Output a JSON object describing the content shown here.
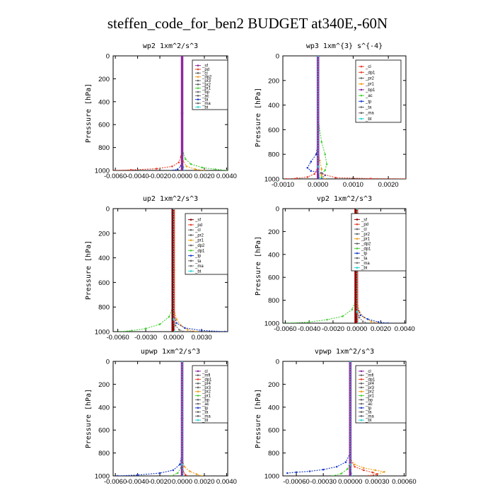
{
  "figure_title": "steffen_code_for_ben2  BUDGET at340E,-60N",
  "chart_data": [
    {
      "type": "line",
      "title": "wp2  1xm^2/s^3",
      "ylabel": "Pressure [hPa]",
      "xlim": [
        -0.0062,
        0.0041
      ],
      "ylim": [
        1000,
        0
      ],
      "xticks": [
        "-0.0060",
        "-0.0040",
        "-0.0020",
        "0.0000",
        "0.0020",
        "0.0040"
      ],
      "xtick_values": [
        -0.006,
        -0.004,
        -0.002,
        0.0,
        0.002,
        0.004
      ],
      "yticks": [
        "0",
        "200",
        "400",
        "600",
        "800",
        "1000"
      ],
      "ytick_values": [
        0,
        200,
        400,
        600,
        800,
        1000
      ],
      "legend": [
        "_sf",
        "_pd",
        "_cl",
        "_dp2",
        "_pr3",
        "_pr2",
        "_pr1",
        "_bp",
        "_ac",
        "_ta",
        "_ma",
        "_bt"
      ],
      "series": [
        {
          "name": "_pd",
          "color": "#e8412c",
          "x": [
            0,
            0,
            0,
            0,
            -0.0001,
            -0.0003,
            -0.0009,
            -0.0023,
            -0.0046,
            -0.006
          ],
          "y": [
            0,
            400,
            700,
            820,
            880,
            930,
            965,
            985,
            995,
            1000
          ]
        },
        {
          "name": "_pr1",
          "color": "#49d03a",
          "x": [
            0,
            0,
            0,
            0.0001,
            0.0003,
            0.0008,
            0.0018,
            0.003,
            0.004
          ],
          "y": [
            0,
            700,
            800,
            850,
            900,
            945,
            975,
            990,
            1000
          ]
        },
        {
          "name": "_dp2",
          "color": "#f0a020",
          "x": [
            0,
            0,
            0.0001,
            0.0004,
            0.0012,
            0.002
          ],
          "y": [
            0,
            850,
            920,
            965,
            990,
            1000
          ]
        },
        {
          "name": "_ta",
          "color": "#1a3cc8",
          "x": [
            0,
            0,
            -0.0001,
            -0.0004,
            -0.0008
          ],
          "y": [
            0,
            900,
            960,
            990,
            1000
          ]
        },
        {
          "name": "_bt",
          "color": "#27d6d6",
          "x": [
            0,
            0,
            0.0001,
            0.0002
          ],
          "y": [
            0,
            900,
            970,
            1000
          ]
        },
        {
          "name": "_sf",
          "color": "#8c2a9c",
          "x": [
            0,
            0,
            0
          ],
          "y": [
            0,
            500,
            1000
          ]
        }
      ]
    },
    {
      "type": "line",
      "title": "wp3  1xm^{3} s^{-4}",
      "ylabel": "Pressure [hPa]",
      "xlim": [
        -0.001,
        0.0025
      ],
      "ylim": [
        1000,
        0
      ],
      "xticks": [
        "-0.0010",
        "0.0000",
        "0.0010",
        "0.0020"
      ],
      "xtick_values": [
        -0.001,
        0.0,
        0.001,
        0.002
      ],
      "yticks": [
        "0",
        "200",
        "400",
        "600",
        "800",
        "1000"
      ],
      "ytick_values": [
        0,
        200,
        400,
        600,
        800,
        1000
      ],
      "legend": [
        "_cl",
        "_dp1",
        "_pr2",
        "_pr1",
        "_bp1",
        "_ac",
        "_tp",
        "_ta",
        "_ma",
        "_bt"
      ],
      "series": [
        {
          "name": "_ac",
          "color": "#49d03a",
          "x": [
            0,
            0,
            0.0001,
            0.0002,
            0.00025,
            0.0002,
            0.0001,
            0.0001,
            0.0001
          ],
          "y": [
            0,
            500,
            700,
            800,
            880,
            930,
            960,
            985,
            1000
          ]
        },
        {
          "name": "_tp",
          "color": "#1a3cc8",
          "x": [
            0,
            0,
            -5e-05,
            -0.0002,
            -0.0003,
            -0.0002,
            0.0001,
            0.0002,
            0.0001
          ],
          "y": [
            0,
            700,
            800,
            860,
            910,
            935,
            950,
            970,
            1000
          ]
        },
        {
          "name": "_pr1",
          "color": "#f0a020",
          "x": [
            0,
            0,
            5e-05,
            0.0001,
            0.0001,
            0.0002
          ],
          "y": [
            0,
            750,
            850,
            920,
            970,
            1000
          ]
        },
        {
          "name": "_dp1",
          "color": "#e8412c",
          "x": [
            0,
            0,
            -0.0001,
            -0.0003,
            -0.0006,
            -0.0009
          ],
          "y": [
            0,
            900,
            960,
            985,
            995,
            1000
          ]
        },
        {
          "name": "_cl",
          "color": "#e8412c",
          "x": [
            0,
            0,
            0.0005,
            0.0015,
            0.0025
          ],
          "y": [
            0,
            950,
            990,
            997,
            1000
          ]
        },
        {
          "name": "_bp1",
          "color": "#8c2a9c",
          "x": [
            0,
            0,
            0
          ],
          "y": [
            0,
            500,
            1000
          ]
        },
        {
          "name": "_bt",
          "color": "#27d6d6",
          "x": [
            0,
            0,
            5e-05
          ],
          "y": [
            0,
            900,
            1000
          ]
        }
      ]
    },
    {
      "type": "line",
      "title": "up2  1xm^2/s^3",
      "ylabel": "Pressure [hPa]",
      "xlim": [
        -0.0065,
        0.0058
      ],
      "ylim": [
        1000,
        0
      ],
      "xticks": [
        "-0.0060",
        "-0.0030",
        "0.0000",
        "0.0030"
      ],
      "xtick_values": [
        -0.006,
        -0.003,
        0.0,
        0.003
      ],
      "yticks": [
        "0",
        "200",
        "400",
        "600",
        "800",
        "1000"
      ],
      "ytick_values": [
        0,
        200,
        400,
        600,
        800,
        1000
      ],
      "legend": [
        "_sf",
        "_pd",
        "_cl",
        "_pr2",
        "_pr1",
        "_dp2",
        "_dp1",
        "_tp",
        "_ta",
        "_ma",
        "_bt"
      ],
      "series": [
        {
          "name": "_dp1",
          "color": "#49d03a",
          "x": [
            0,
            0,
            -0.0001,
            -0.0005,
            -0.0015,
            -0.003,
            -0.0045,
            -0.0058
          ],
          "y": [
            0,
            700,
            800,
            880,
            940,
            975,
            992,
            1000
          ]
        },
        {
          "name": "_pr1",
          "color": "#f0a020",
          "x": [
            0,
            0,
            0.0003,
            0.0008,
            0.0015,
            0.0025
          ],
          "y": [
            0,
            800,
            900,
            950,
            985,
            1000
          ]
        },
        {
          "name": "_tp",
          "color": "#1a3cc8",
          "x": [
            0,
            0,
            0.0003,
            0.0012,
            0.003,
            0.0055
          ],
          "y": [
            0,
            850,
            930,
            970,
            990,
            1000
          ]
        },
        {
          "name": "_ma",
          "color": "#777777",
          "x": [
            0,
            0,
            0.0002,
            0.0006,
            0.0012
          ],
          "y": [
            0,
            880,
            950,
            985,
            1000
          ]
        },
        {
          "name": "_pd",
          "color": "#e8412c",
          "x": [
            0,
            0,
            0
          ],
          "y": [
            0,
            500,
            1000
          ]
        },
        {
          "name": "_sf",
          "color": "#8b0000",
          "x": [
            -0.0001,
            -0.0001,
            -0.0001
          ],
          "y": [
            0,
            500,
            1000
          ]
        },
        {
          "name": "_bt",
          "color": "#27d6d6",
          "x": [
            0,
            0,
            0.0001
          ],
          "y": [
            0,
            900,
            1000
          ]
        }
      ]
    },
    {
      "type": "line",
      "title": "vp2  1xm^2/s^3",
      "ylabel": "Pressure [hPa]",
      "xlim": [
        -0.0062,
        0.0041
      ],
      "ylim": [
        1000,
        0
      ],
      "xticks": [
        "-0.0060",
        "-0.0040",
        "-0.0020",
        "0.0000",
        "0.0020",
        "0.0040"
      ],
      "xtick_values": [
        -0.006,
        -0.004,
        -0.002,
        0.0,
        0.002,
        0.004
      ],
      "yticks": [
        "0",
        "200",
        "400",
        "600",
        "800",
        "1000"
      ],
      "ytick_values": [
        0,
        200,
        400,
        600,
        800,
        1000
      ],
      "legend": [
        "_sf",
        "_pd",
        "_cl",
        "_pr2",
        "_pr1",
        "_dp2",
        "_dp1",
        "_tp",
        "_ta",
        "_ma",
        "_bt"
      ],
      "series": [
        {
          "name": "_dp1",
          "color": "#49d03a",
          "x": [
            0,
            0,
            -0.0001,
            -0.0004,
            -0.0012,
            -0.0025,
            -0.004,
            -0.0058
          ],
          "y": [
            0,
            700,
            800,
            880,
            940,
            970,
            990,
            1000
          ]
        },
        {
          "name": "_pr1",
          "color": "#f0a020",
          "x": [
            0,
            0,
            0.0002,
            0.0006,
            0.0012,
            0.0018
          ],
          "y": [
            0,
            800,
            900,
            950,
            985,
            1000
          ]
        },
        {
          "name": "_tp",
          "color": "#1a3cc8",
          "x": [
            0,
            0,
            0.0003,
            0.0009,
            0.0018,
            0.0026
          ],
          "y": [
            0,
            850,
            930,
            965,
            990,
            1000
          ]
        },
        {
          "name": "_ma",
          "color": "#777777",
          "x": [
            0,
            0,
            0.0002,
            0.0005,
            0.001
          ],
          "y": [
            0,
            880,
            950,
            985,
            1000
          ]
        },
        {
          "name": "_pd",
          "color": "#e8412c",
          "x": [
            0,
            0,
            0
          ],
          "y": [
            0,
            500,
            1000
          ]
        },
        {
          "name": "_sf",
          "color": "#8b0000",
          "x": [
            -0.0001,
            -0.0001,
            -0.0001
          ],
          "y": [
            0,
            500,
            1000
          ]
        },
        {
          "name": "_bt",
          "color": "#27d6d6",
          "x": [
            0,
            0,
            0.0001
          ],
          "y": [
            0,
            900,
            1000
          ]
        }
      ]
    },
    {
      "type": "line",
      "title": "upwp  1xm^2/s^3",
      "ylabel": "Pressure [hPa]",
      "xlim": [
        -0.0062,
        0.0041
      ],
      "ylim": [
        1000,
        0
      ],
      "xticks": [
        "-0.0060",
        "-0.0040",
        "-0.0020",
        "0.0000",
        "0.0020",
        "0.0040"
      ],
      "xtick_values": [
        -0.006,
        -0.004,
        -0.002,
        0.0,
        0.002,
        0.004
      ],
      "yticks": [
        "0",
        "200",
        "400",
        "600",
        "800",
        "1000"
      ],
      "ytick_values": [
        0,
        200,
        400,
        600,
        800,
        1000
      ],
      "legend": [
        "_cl",
        "_mfl",
        "_dp1",
        "_pr4",
        "_pr3",
        "_pr2",
        "_pr1",
        "_bp",
        "_ac",
        "_tp",
        "_ta",
        "_ma",
        "_bt"
      ],
      "series": [
        {
          "name": "_tp",
          "color": "#1a3cc8",
          "x": [
            0,
            0,
            -0.0002,
            -0.0008,
            -0.002,
            -0.004,
            -0.0058
          ],
          "y": [
            0,
            800,
            900,
            950,
            975,
            992,
            1000
          ]
        },
        {
          "name": "_pr2",
          "color": "#f0a020",
          "x": [
            0,
            0,
            0.0002,
            0.0007,
            0.0013,
            0.0018
          ],
          "y": [
            0,
            850,
            920,
            960,
            985,
            1000
          ]
        },
        {
          "name": "_pr1",
          "color": "#49d03a",
          "x": [
            0,
            0,
            -0.0001,
            -0.0004,
            -0.001
          ],
          "y": [
            0,
            850,
            930,
            975,
            1000
          ]
        },
        {
          "name": "_dp1",
          "color": "#e8412c",
          "x": [
            0,
            0,
            0.0001,
            0.0003,
            0.0005
          ],
          "y": [
            0,
            900,
            960,
            990,
            1000
          ]
        },
        {
          "name": "_cl",
          "color": "#8c2a9c",
          "x": [
            0,
            0,
            0
          ],
          "y": [
            0,
            500,
            1000
          ]
        },
        {
          "name": "_bt",
          "color": "#27d6d6",
          "x": [
            0,
            0,
            0.0001
          ],
          "y": [
            0,
            900,
            1000
          ]
        }
      ]
    },
    {
      "type": "line",
      "title": "vpwp  1xm^2/s^3",
      "ylabel": "Pressure [hPa]",
      "xlim": [
        -0.00075,
        0.00062
      ],
      "ylim": [
        1000,
        0
      ],
      "xticks": [
        "-0.00060",
        "-0.00030",
        "0.00000",
        "0.00030",
        "0.00060"
      ],
      "xtick_values": [
        -0.0006,
        -0.0003,
        0.0,
        0.0003,
        0.0006
      ],
      "yticks": [
        "0",
        "200",
        "400",
        "600",
        "800",
        "1000"
      ],
      "ytick_values": [
        0,
        200,
        400,
        600,
        800,
        1000
      ],
      "legend": [
        "_cl",
        "_mfl",
        "_dp1",
        "_pr4",
        "_pr3",
        "_pr2",
        "_pr1",
        "_bp",
        "_ac",
        "_tp",
        "_ta",
        "_ma",
        "_bt"
      ],
      "series": [
        {
          "name": "_tp",
          "color": "#1a3cc8",
          "x": [
            0,
            0,
            -5e-05,
            -0.00015,
            -0.0003,
            -0.00045,
            -0.0006,
            -0.0007
          ],
          "y": [
            0,
            800,
            880,
            920,
            945,
            960,
            968,
            975
          ]
        },
        {
          "name": "_pr2",
          "color": "#f0a020",
          "x": [
            0,
            0,
            5e-05,
            0.00015,
            0.00028,
            0.00038,
            0.0003,
            0.0002
          ],
          "y": [
            0,
            850,
            900,
            930,
            950,
            965,
            985,
            1000
          ]
        },
        {
          "name": "_dp1",
          "color": "#e8412c",
          "x": [
            0,
            0,
            5e-05,
            0.00015,
            0.00025,
            0.0003,
            0.0002
          ],
          "y": [
            0,
            860,
            920,
            950,
            970,
            985,
            1000
          ]
        },
        {
          "name": "_pr1",
          "color": "#49d03a",
          "x": [
            0,
            0,
            -3e-05,
            -0.0001,
            -0.0002
          ],
          "y": [
            0,
            880,
            940,
            980,
            1000
          ]
        },
        {
          "name": "_cl",
          "color": "#8c2a9c",
          "x": [
            0,
            0,
            0
          ],
          "y": [
            0,
            500,
            1000
          ]
        },
        {
          "name": "_bt",
          "color": "#27d6d6",
          "x": [
            0,
            0,
            2e-05
          ],
          "y": [
            0,
            900,
            1000
          ]
        }
      ]
    }
  ]
}
